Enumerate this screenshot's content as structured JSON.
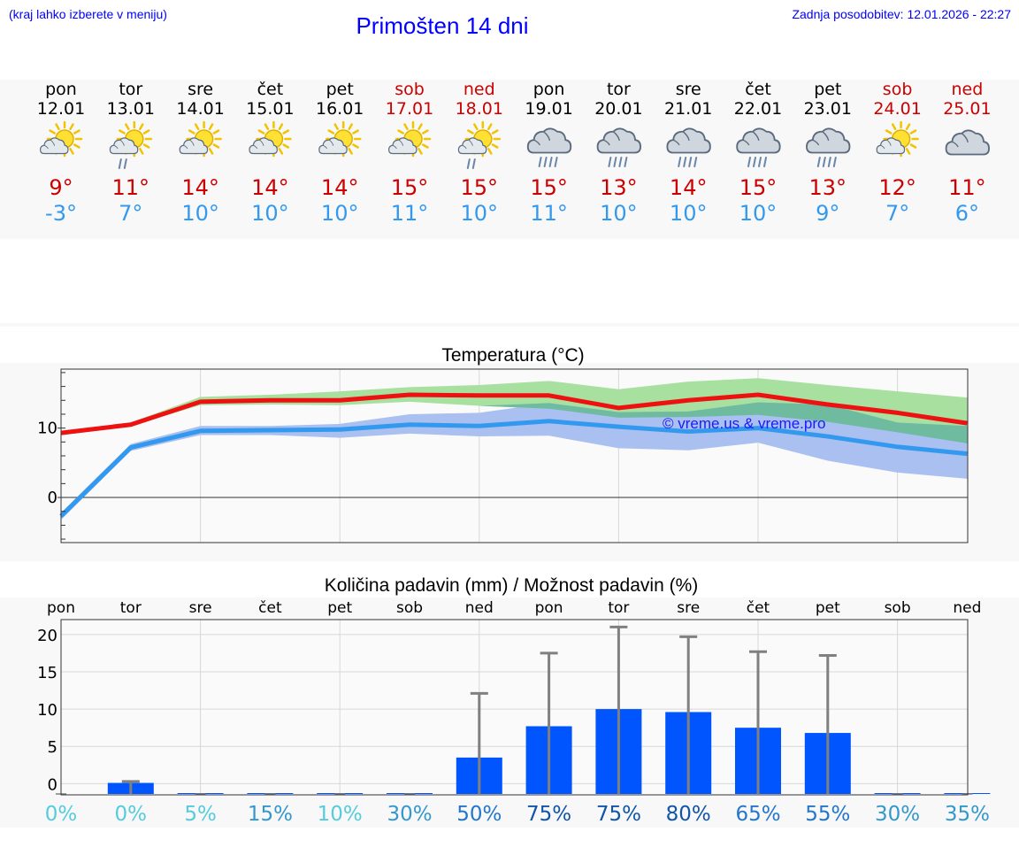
{
  "header": {
    "note": "(kraj lahko izberete v meniju)",
    "title": "Primošten 14 dni",
    "updated": "Zadnja posodobitev: 12.01.2026 - 22:27"
  },
  "forecast": [
    {
      "day": "pon",
      "date": "12.01",
      "weekend": false,
      "icon": "sun-cloud",
      "max": "9°",
      "min": "-3°"
    },
    {
      "day": "tor",
      "date": "13.01",
      "weekend": false,
      "icon": "sun-cloud-drizzle",
      "max": "11°",
      "min": "7°"
    },
    {
      "day": "sre",
      "date": "14.01",
      "weekend": false,
      "icon": "sun-cloud",
      "max": "14°",
      "min": "10°"
    },
    {
      "day": "čet",
      "date": "15.01",
      "weekend": false,
      "icon": "sun-cloud",
      "max": "14°",
      "min": "10°"
    },
    {
      "day": "pet",
      "date": "16.01",
      "weekend": false,
      "icon": "sun-cloud",
      "max": "14°",
      "min": "10°"
    },
    {
      "day": "sob",
      "date": "17.01",
      "weekend": true,
      "icon": "sun-cloud",
      "max": "15°",
      "min": "11°"
    },
    {
      "day": "ned",
      "date": "18.01",
      "weekend": true,
      "icon": "sun-cloud-drizzle",
      "max": "15°",
      "min": "10°"
    },
    {
      "day": "pon",
      "date": "19.01",
      "weekend": false,
      "icon": "cloud-rain",
      "max": "15°",
      "min": "11°"
    },
    {
      "day": "tor",
      "date": "20.01",
      "weekend": false,
      "icon": "cloud-rain",
      "max": "13°",
      "min": "10°"
    },
    {
      "day": "sre",
      "date": "21.01",
      "weekend": false,
      "icon": "cloud-rain",
      "max": "14°",
      "min": "10°"
    },
    {
      "day": "čet",
      "date": "22.01",
      "weekend": false,
      "icon": "cloud-rain",
      "max": "15°",
      "min": "10°"
    },
    {
      "day": "pet",
      "date": "23.01",
      "weekend": false,
      "icon": "cloud-rain",
      "max": "13°",
      "min": "9°"
    },
    {
      "day": "sob",
      "date": "24.01",
      "weekend": true,
      "icon": "sun-cloud",
      "max": "12°",
      "min": "7°"
    },
    {
      "day": "ned",
      "date": "25.01",
      "weekend": true,
      "icon": "cloud",
      "max": "11°",
      "min": "6°"
    }
  ],
  "colors": {
    "max": "#ee1111",
    "min": "#3399ee",
    "max_band": "#a8e0a0",
    "min_band": "#a9c0f0",
    "overlap": "#6fbba0",
    "bar": "#0055ff",
    "errbar": "#808080"
  },
  "chart_data": [
    {
      "type": "line",
      "title": "Temperatura (°C)",
      "ylim": [
        -6.5,
        18.5
      ],
      "yticks": [
        0,
        10
      ],
      "x": [
        0,
        1,
        2,
        3,
        4,
        5,
        6,
        7,
        8,
        9,
        10,
        11,
        12,
        13
      ],
      "series": [
        {
          "name": "max",
          "values": [
            9.3,
            10.5,
            13.8,
            14.0,
            14.0,
            14.8,
            14.7,
            14.7,
            12.9,
            14.0,
            14.8,
            13.4,
            12.2,
            10.7
          ],
          "low": [
            9.0,
            10.3,
            13.3,
            13.4,
            13.3,
            13.8,
            13.2,
            12.8,
            11.5,
            11.6,
            11.9,
            10.9,
            9.4,
            7.8
          ],
          "high": [
            9.6,
            10.8,
            14.5,
            14.8,
            15.3,
            15.9,
            16.2,
            16.8,
            15.6,
            16.7,
            17.2,
            16.2,
            15.3,
            14.4
          ]
        },
        {
          "name": "min",
          "values": [
            -2.7,
            7.2,
            9.6,
            9.7,
            9.8,
            10.5,
            10.3,
            11.0,
            10.2,
            9.5,
            10.0,
            8.8,
            7.3,
            6.3
          ],
          "low": [
            -3.2,
            6.7,
            9.0,
            9.0,
            8.6,
            9.2,
            8.8,
            8.9,
            7.1,
            6.8,
            7.9,
            5.3,
            3.6,
            2.7
          ],
          "high": [
            -2.2,
            7.7,
            10.3,
            10.3,
            10.6,
            12.0,
            12.2,
            13.6,
            12.3,
            12.4,
            13.7,
            13.4,
            10.8,
            10.3
          ]
        }
      ],
      "watermark": "© vreme.us & vreme.pro"
    },
    {
      "type": "bar",
      "title": "Količina padavin (mm) / Možnost padavin (%)",
      "categories": [
        "pon",
        "tor",
        "sre",
        "čet",
        "pet",
        "sob",
        "ned",
        "pon",
        "tor",
        "sre",
        "čet",
        "pet",
        "sob",
        "ned"
      ],
      "ylim": [
        -1.5,
        22
      ],
      "yticks": [
        0,
        5,
        10,
        15,
        20
      ],
      "values": [
        0,
        0.1,
        0,
        0,
        0,
        0,
        3.5,
        7.7,
        10.0,
        9.6,
        7.5,
        6.8,
        0,
        0
      ],
      "error_high": [
        0,
        0.3,
        0,
        0,
        0,
        0,
        12.1,
        17.5,
        21.0,
        19.7,
        17.7,
        17.2,
        0,
        0
      ],
      "probability": [
        "0%",
        "0%",
        "5%",
        "15%",
        "10%",
        "30%",
        "50%",
        "75%",
        "75%",
        "80%",
        "65%",
        "55%",
        "30%",
        "35%"
      ]
    }
  ]
}
